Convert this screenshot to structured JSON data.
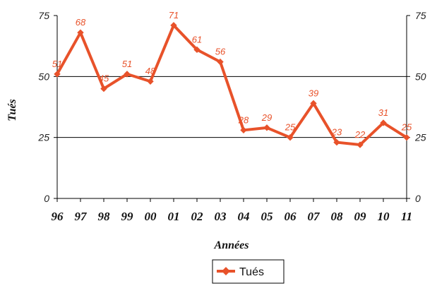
{
  "chart_data": {
    "type": "line",
    "title": "",
    "xlabel": "Années",
    "ylabel": "Tués",
    "ylim": [
      0,
      75
    ],
    "y_ticks": [
      "0",
      "25",
      "50",
      "75"
    ],
    "categories": [
      "96",
      "97",
      "98",
      "99",
      "00",
      "01",
      "02",
      "03",
      "04",
      "05",
      "06",
      "07",
      "08",
      "09",
      "10",
      "11"
    ],
    "series": [
      {
        "name": "Tués",
        "values": [
          51,
          68,
          45,
          51,
          48,
          71,
          61,
          56,
          28,
          29,
          25,
          39,
          23,
          22,
          31,
          25
        ],
        "labels": [
          "51",
          "68",
          "45",
          "51",
          "48",
          "71",
          "61",
          "56",
          "28",
          "29",
          "25",
          "39",
          "23",
          "22",
          "31",
          "25"
        ]
      }
    ],
    "grid": true,
    "secondary_y_axis": true,
    "legend_position": "bottom",
    "colors": {
      "series": "#e8522a",
      "grid": "#000000",
      "axis": "#000000"
    }
  }
}
